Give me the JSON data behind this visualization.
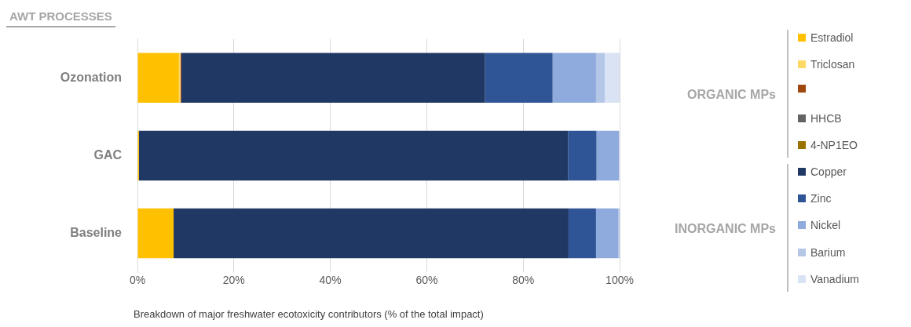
{
  "chart_data": {
    "type": "bar",
    "orientation": "horizontal",
    "stacked": true,
    "ylabel": "AWT PROCESSES",
    "xlabel": "Breakdown of major freshwater ecotoxicity contributors (% of the total impact)",
    "categories": [
      "Ozonation",
      "GAC",
      "Baseline"
    ],
    "series": [
      {
        "name": "Estradiol",
        "color": "#ffc000",
        "values": [
          8.6,
          0.3,
          7.5
        ]
      },
      {
        "name": "Triclosan",
        "color": "#ffd966",
        "values": [
          0.3,
          0,
          0
        ]
      },
      {
        "color": "#9e480e",
        "values": [
          0.2,
          0,
          0
        ]
      },
      {
        "name": "HHCB",
        "color": "#636363",
        "values": [
          0,
          0,
          0
        ]
      },
      {
        "name": "4-NP1EO",
        "color": "#997300",
        "values": [
          0,
          0,
          0
        ]
      },
      {
        "name": "Copper",
        "color": "#203864",
        "values": [
          63.0,
          89.0,
          81.9
        ]
      },
      {
        "name": "Zinc",
        "color": "#2f5597",
        "values": [
          14.0,
          5.9,
          5.7
        ]
      },
      {
        "name": "Nickel",
        "color": "#8faadc",
        "values": [
          9.0,
          4.7,
          4.6
        ]
      },
      {
        "name": "Barium",
        "color": "#b4c7e7",
        "values": [
          1.8,
          null,
          0.3
        ]
      },
      {
        "name": "Vanadium",
        "color": "#dae3f3",
        "values": [
          3.1,
          0,
          0
        ]
      }
    ],
    "xlim": [
      0,
      100
    ],
    "xticks": [
      {
        "value": 0,
        "label": "0%"
      },
      {
        "value": 20,
        "label": "20%"
      },
      {
        "value": 40,
        "label": "40%"
      },
      {
        "value": 60,
        "label": "60%"
      },
      {
        "value": 80,
        "label": "80%"
      },
      {
        "value": 100,
        "label": "100%"
      }
    ],
    "grid": "x",
    "legend": "right",
    "annotations": [
      "ORGANIC MPs",
      "INORGANIC MPs"
    ]
  }
}
